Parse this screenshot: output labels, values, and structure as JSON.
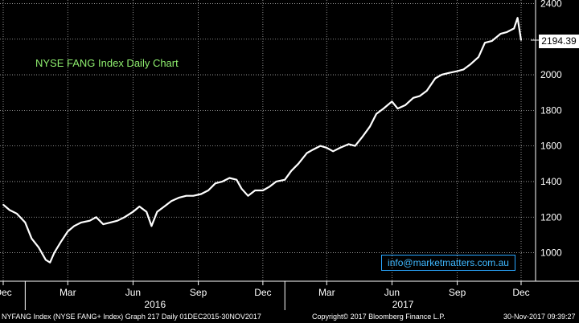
{
  "chart_data": {
    "type": "line",
    "title": "NYSE FANG Index Daily Chart",
    "last_value": "2194.39",
    "ylim": [
      840,
      2420
    ],
    "y_ticks": [
      1000,
      1200,
      1400,
      1600,
      1800,
      2000,
      2200,
      2400
    ],
    "y_tick_labels": [
      "1000",
      "1200",
      "1400",
      "1600",
      "1800",
      "2000",
      "2200",
      "2400"
    ],
    "x_tick_labels": [
      "Dec",
      "Mar",
      "Jun",
      "Sep",
      "Dec",
      "Mar",
      "Jun",
      "Sep",
      "Dec"
    ],
    "year_labels": [
      "2016",
      "2017"
    ],
    "grid": true,
    "series": [
      {
        "color": "#ffffff",
        "x": [
          "2015-12-01",
          "2015-12-10",
          "2015-12-20",
          "2016-01-01",
          "2016-01-10",
          "2016-01-20",
          "2016-01-30",
          "2016-02-05",
          "2016-02-11",
          "2016-02-20",
          "2016-03-01",
          "2016-03-10",
          "2016-03-20",
          "2016-04-01",
          "2016-04-10",
          "2016-04-20",
          "2016-04-30",
          "2016-05-10",
          "2016-05-20",
          "2016-06-01",
          "2016-06-10",
          "2016-06-20",
          "2016-06-27",
          "2016-07-05",
          "2016-07-15",
          "2016-07-25",
          "2016-08-05",
          "2016-08-15",
          "2016-08-25",
          "2016-09-05",
          "2016-09-15",
          "2016-09-25",
          "2016-10-05",
          "2016-10-15",
          "2016-10-25",
          "2016-11-01",
          "2016-11-10",
          "2016-11-20",
          "2016-12-01",
          "2016-12-10",
          "2016-12-20",
          "2017-01-01",
          "2017-01-10",
          "2017-01-20",
          "2017-02-01",
          "2017-02-10",
          "2017-02-20",
          "2017-03-01",
          "2017-03-10",
          "2017-03-20",
          "2017-04-01",
          "2017-04-10",
          "2017-04-20",
          "2017-05-01",
          "2017-05-10",
          "2017-05-20",
          "2017-06-01",
          "2017-06-09",
          "2017-06-20",
          "2017-07-01",
          "2017-07-10",
          "2017-07-20",
          "2017-08-01",
          "2017-08-10",
          "2017-08-20",
          "2017-09-01",
          "2017-09-10",
          "2017-09-20",
          "2017-10-01",
          "2017-10-10",
          "2017-10-20",
          "2017-11-01",
          "2017-11-10",
          "2017-11-20",
          "2017-11-25",
          "2017-11-30"
        ],
        "values": [
          1270,
          1240,
          1220,
          1170,
          1080,
          1030,
          960,
          945,
          1000,
          1060,
          1120,
          1150,
          1170,
          1180,
          1200,
          1160,
          1170,
          1180,
          1200,
          1230,
          1260,
          1230,
          1150,
          1230,
          1260,
          1290,
          1310,
          1320,
          1320,
          1330,
          1350,
          1390,
          1400,
          1420,
          1410,
          1360,
          1320,
          1350,
          1350,
          1370,
          1400,
          1410,
          1460,
          1500,
          1560,
          1580,
          1600,
          1590,
          1570,
          1590,
          1610,
          1600,
          1650,
          1710,
          1780,
          1810,
          1850,
          1810,
          1830,
          1870,
          1880,
          1910,
          1980,
          2000,
          2010,
          2020,
          2030,
          2060,
          2100,
          2180,
          2190,
          2230,
          2240,
          2260,
          2320,
          2194.39
        ]
      }
    ]
  },
  "branding": {
    "email": "info@marketmatters.com.au"
  },
  "footer": {
    "left": "NYFANG Index (NYSE FANG+ Index) Graph 217 Daily 01DEC2015-30NOV2017",
    "center": "Copyright© 2017 Bloomberg Finance L.P.",
    "right": "30-Nov-2017 09:39:27"
  },
  "colors": {
    "background": "#000000",
    "line": "#ffffff",
    "grid": "#ffffff",
    "title": "#8fef6f",
    "email": "#3fb8ff"
  }
}
